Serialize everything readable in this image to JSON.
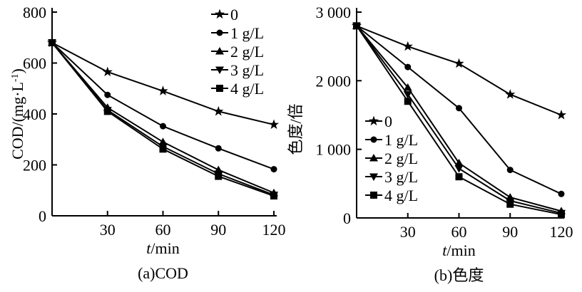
{
  "chart_data": [
    {
      "type": "line",
      "caption": "(a)COD",
      "xlabel_italic": "t",
      "xlabel_rest": "/min",
      "ylabel": "COD/(mg·L",
      "ylabel_sup": "-1",
      "ylabel_close": ")",
      "x": [
        0,
        30,
        60,
        90,
        120
      ],
      "xticks": [
        "30",
        "60",
        "90",
        "120"
      ],
      "yticks": [
        "0",
        "200",
        "400",
        "600",
        "800"
      ],
      "ylim": [
        0,
        800
      ],
      "xlim": [
        0,
        120
      ],
      "legend_position": "top-right",
      "series": [
        {
          "name": "0",
          "marker": "star",
          "values": [
            680,
            565,
            490,
            410,
            358
          ]
        },
        {
          "name": "1 g/L",
          "marker": "circle",
          "values": [
            680,
            475,
            352,
            265,
            183
          ]
        },
        {
          "name": "2 g/L",
          "marker": "triangle-up",
          "values": [
            680,
            425,
            290,
            180,
            90
          ]
        },
        {
          "name": "3 g/L",
          "marker": "triangle-down",
          "values": [
            680,
            415,
            272,
            165,
            82
          ]
        },
        {
          "name": "4 g/L",
          "marker": "square",
          "values": [
            680,
            410,
            262,
            155,
            78
          ]
        }
      ]
    },
    {
      "type": "line",
      "caption": "(b)色度",
      "xlabel_italic": "t",
      "xlabel_rest": "/min",
      "ylabel": "色度/倍",
      "x": [
        0,
        30,
        60,
        90,
        120
      ],
      "xticks": [
        "30",
        "60",
        "90",
        "120"
      ],
      "yticks": [
        "0",
        "1 000",
        "2 000",
        "3 000"
      ],
      "ylim": [
        0,
        3000
      ],
      "xlim": [
        0,
        120
      ],
      "legend_position": "bottom-left",
      "series": [
        {
          "name": "0",
          "marker": "star",
          "values": [
            2800,
            2500,
            2250,
            1800,
            1500
          ]
        },
        {
          "name": "1 g/L",
          "marker": "circle",
          "values": [
            2800,
            2200,
            1600,
            700,
            350
          ]
        },
        {
          "name": "2 g/L",
          "marker": "triangle-up",
          "values": [
            2800,
            1900,
            800,
            300,
            100
          ]
        },
        {
          "name": "3 g/L",
          "marker": "triangle-down",
          "values": [
            2800,
            1800,
            720,
            250,
            70
          ]
        },
        {
          "name": "4 g/L",
          "marker": "square",
          "values": [
            2800,
            1700,
            600,
            200,
            50
          ]
        }
      ]
    }
  ]
}
